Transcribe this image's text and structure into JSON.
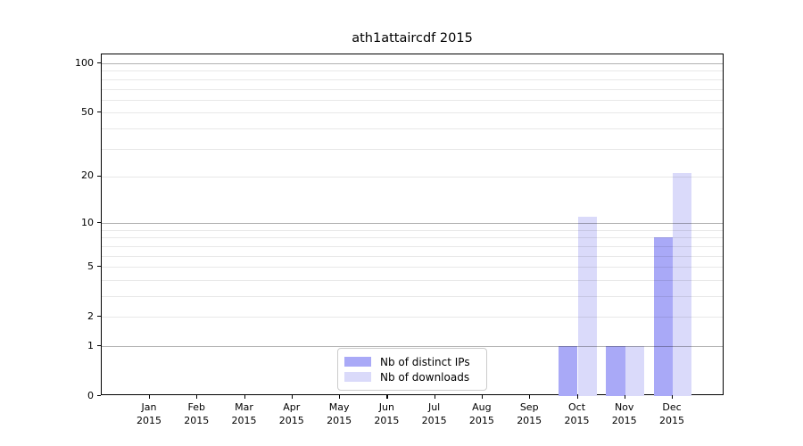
{
  "chart_data": {
    "type": "bar",
    "title": "ath1attaircdf 2015",
    "categories": [
      "Jan",
      "Feb",
      "Mar",
      "Apr",
      "May",
      "Jun",
      "Jul",
      "Aug",
      "Sep",
      "Oct",
      "Nov",
      "Dec"
    ],
    "x_tick_second_line": "2015",
    "series": [
      {
        "name": "Nb of distinct IPs",
        "key": "distinct-ips",
        "color": "#a9a9f7",
        "values": [
          0,
          0,
          0,
          0,
          0,
          0,
          0,
          0,
          0,
          1,
          1,
          8
        ]
      },
      {
        "name": "Nb of downloads",
        "key": "downloads",
        "color": "#dadafa",
        "values": [
          0,
          0,
          0,
          0,
          0,
          0,
          0,
          0,
          0,
          11,
          1,
          21
        ]
      }
    ],
    "yscale": "log1p",
    "ylim": [
      0,
      113
    ],
    "y_tick_values": [
      0,
      1,
      2,
      5,
      10,
      20,
      50,
      100
    ],
    "y_tick_labels": [
      "0",
      "1",
      "2",
      "5",
      "10",
      "20",
      "50",
      "100"
    ],
    "y_major_gridlines": [
      1,
      10,
      100
    ],
    "y_minor_gridlines": [
      2,
      3,
      4,
      5,
      6,
      7,
      8,
      9,
      20,
      30,
      40,
      50,
      60,
      70,
      80,
      90
    ],
    "grid": true,
    "legend_position": "lower center",
    "colors": {
      "major_grid": "#b3b3b3",
      "minor_grid": "#e8e8e8",
      "spine": "#000000",
      "text": "#000000",
      "background": "#ffffff"
    }
  }
}
